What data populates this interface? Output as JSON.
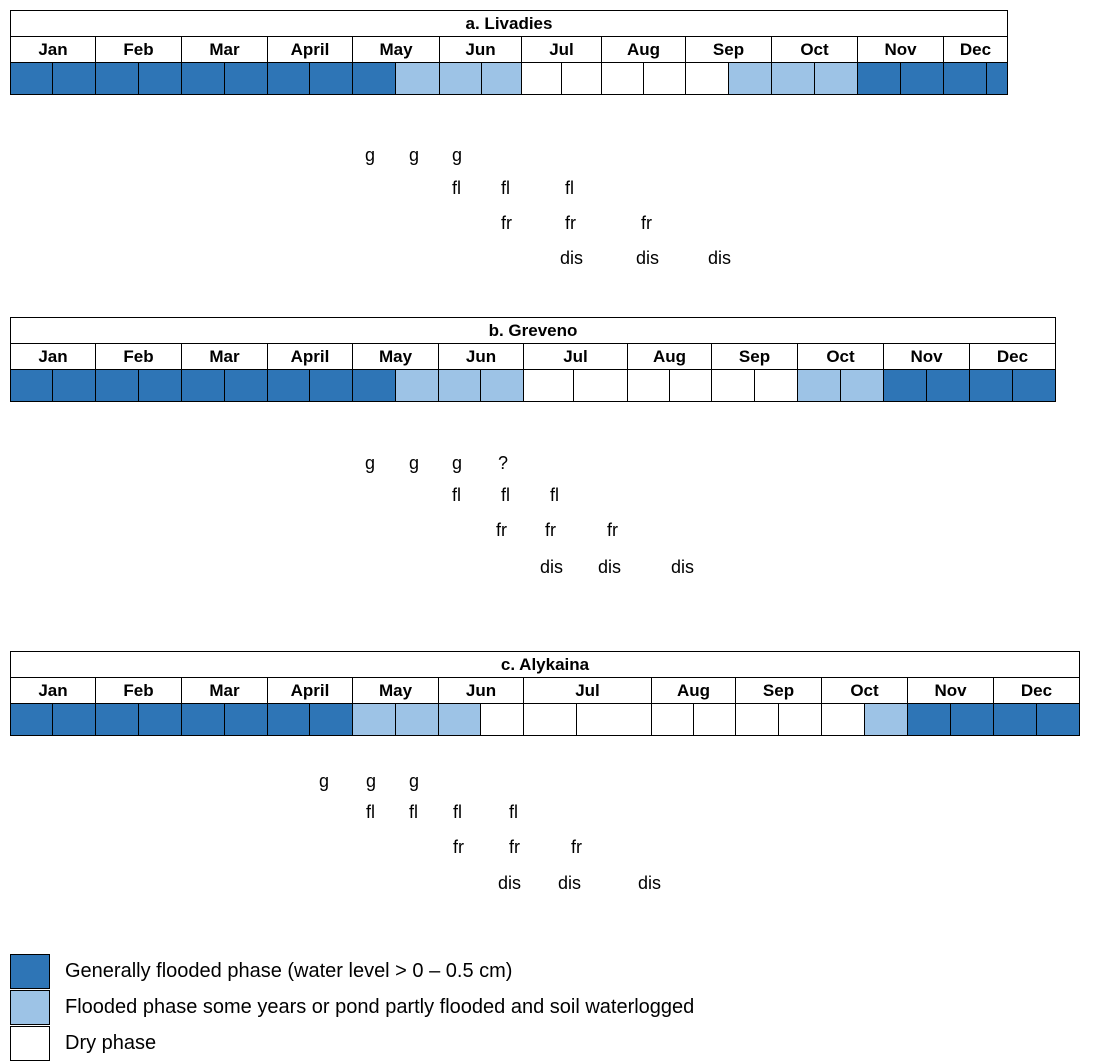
{
  "colors": {
    "generally_flooded": "#2e75b6",
    "partly_flooded": "#9dc3e6",
    "dry": "#ffffff"
  },
  "panels": [
    {
      "title": "a.    Livadies",
      "months": [
        "Jan",
        "Feb",
        "Mar",
        "April",
        "May",
        "Jun",
        "Jul",
        "Aug",
        "Sep",
        "Oct",
        "Nov",
        "Dec"
      ],
      "phases": [
        "full",
        "full",
        "full",
        "full",
        "full",
        "full",
        "full",
        "full",
        "full",
        "part",
        "part",
        "part",
        "dry",
        "dry",
        "dry",
        "dry",
        "dry",
        "part",
        "part",
        "part",
        "full",
        "full",
        "full",
        "full"
      ],
      "stages": [
        {
          "label": "g",
          "positions": [
            "May",
            "May",
            "Jun"
          ]
        },
        {
          "label": "fl",
          "positions": [
            "Jun",
            "Jun",
            "Jul"
          ]
        },
        {
          "label": "fr",
          "positions": [
            "Jun",
            "Jul",
            "Jul"
          ]
        },
        {
          "label": "dis",
          "positions": [
            "Jul",
            "Jul",
            "Aug"
          ]
        }
      ]
    },
    {
      "title": "b.    Greveno",
      "months": [
        "Jan",
        "Feb",
        "Mar",
        "April",
        "May",
        "Jun",
        "Jul",
        "Aug",
        "Sep",
        "Oct",
        "Nov",
        "Dec"
      ],
      "phases": [
        "full",
        "full",
        "full",
        "full",
        "full",
        "full",
        "full",
        "full",
        "full",
        "part",
        "part",
        "part",
        "dry",
        "dry",
        "dry",
        "dry",
        "dry",
        "dry",
        "part",
        "part",
        "full",
        "full",
        "full",
        "full"
      ],
      "stages": [
        {
          "label": "g",
          "positions": [
            "May",
            "May",
            "Jun"
          ]
        },
        {
          "label": "?",
          "positions": [
            "Jun"
          ]
        },
        {
          "label": "fl",
          "positions": [
            "Jun",
            "Jun",
            "Jul"
          ]
        },
        {
          "label": "fr",
          "positions": [
            "Jun",
            "Jul",
            "Jul"
          ]
        },
        {
          "label": "dis",
          "positions": [
            "Jul",
            "Jul",
            "Aug"
          ]
        }
      ]
    },
    {
      "title": "c.    Alykaina",
      "months": [
        "Jan",
        "Feb",
        "Mar",
        "April",
        "May",
        "Jun",
        "Jul",
        "Aug",
        "Sep",
        "Oct",
        "Nov",
        "Dec"
      ],
      "phases": [
        "full",
        "full",
        "full",
        "full",
        "full",
        "full",
        "full",
        "full",
        "part",
        "part",
        "part",
        "dry",
        "dry",
        "dry",
        "dry",
        "dry",
        "dry",
        "dry",
        "dry",
        "part",
        "full",
        "full",
        "full",
        "full"
      ],
      "stages": [
        {
          "label": "g",
          "positions": [
            "April",
            "May",
            "May"
          ]
        },
        {
          "label": "fl",
          "positions": [
            "May",
            "May",
            "Jun",
            "Jun"
          ]
        },
        {
          "label": "fr",
          "positions": [
            "Jun",
            "Jun",
            "Jul"
          ]
        },
        {
          "label": "dis",
          "positions": [
            "Jun",
            "Jul",
            "Jul"
          ]
        }
      ]
    }
  ],
  "legend": [
    {
      "color_key": "generally_flooded",
      "text": "Generally flooded phase (water level > 0 – 0.5 cm)"
    },
    {
      "color_key": "partly_flooded",
      "text": "Flooded phase some years or pond partly flooded and soil waterlogged"
    },
    {
      "color_key": "dry",
      "text": "Dry phase"
    }
  ]
}
